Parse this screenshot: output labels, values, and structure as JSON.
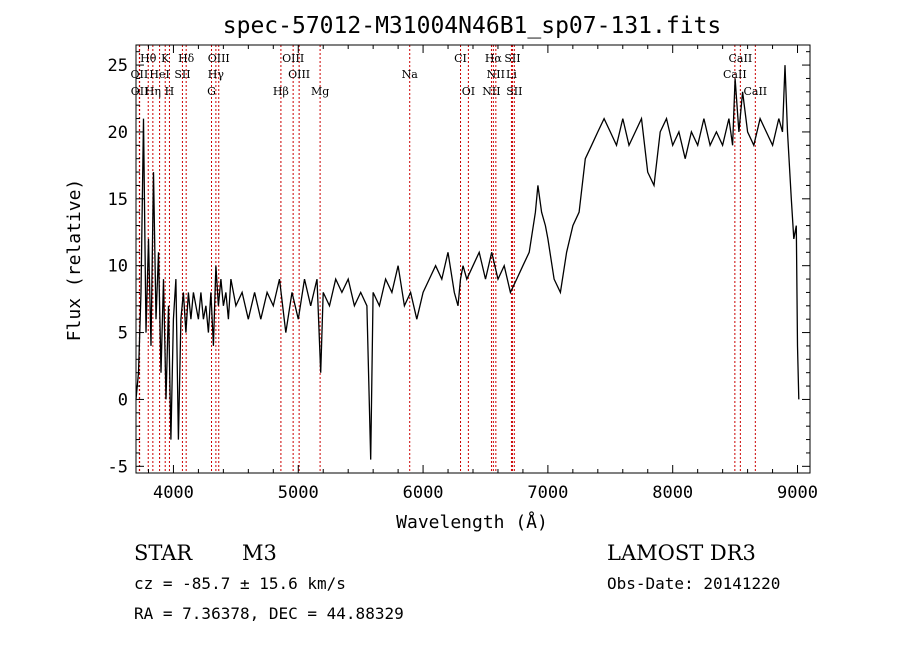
{
  "chart_data": {
    "type": "line",
    "title": "spec-57012-M31004N46B1_sp07-131.fits",
    "xlabel": "Wavelength (Å)",
    "ylabel": "Flux (relative)",
    "xlim": [
      3700,
      9100
    ],
    "ylim": [
      -5.5,
      26.5
    ],
    "x_ticks": [
      4000,
      5000,
      6000,
      7000,
      8000,
      9000
    ],
    "y_ticks": [
      -5,
      0,
      5,
      10,
      15,
      20,
      25
    ],
    "grid": false,
    "spectrum": [
      [
        3700,
        0
      ],
      [
        3720,
        2
      ],
      [
        3740,
        8
      ],
      [
        3760,
        21
      ],
      [
        3780,
        5
      ],
      [
        3800,
        12
      ],
      [
        3820,
        4
      ],
      [
        3840,
        17
      ],
      [
        3860,
        6
      ],
      [
        3880,
        11
      ],
      [
        3900,
        2
      ],
      [
        3920,
        9
      ],
      [
        3940,
        0
      ],
      [
        3960,
        7
      ],
      [
        3980,
        -3
      ],
      [
        4000,
        6
      ],
      [
        4020,
        9
      ],
      [
        4040,
        -3
      ],
      [
        4060,
        6
      ],
      [
        4080,
        8
      ],
      [
        4100,
        5
      ],
      [
        4120,
        8
      ],
      [
        4140,
        6
      ],
      [
        4160,
        8
      ],
      [
        4180,
        7
      ],
      [
        4200,
        6
      ],
      [
        4220,
        8
      ],
      [
        4240,
        6
      ],
      [
        4260,
        7
      ],
      [
        4280,
        5
      ],
      [
        4300,
        8
      ],
      [
        4320,
        4
      ],
      [
        4340,
        10
      ],
      [
        4360,
        7
      ],
      [
        4380,
        9
      ],
      [
        4400,
        7
      ],
      [
        4420,
        8
      ],
      [
        4440,
        6
      ],
      [
        4460,
        9
      ],
      [
        4480,
        8
      ],
      [
        4500,
        7
      ],
      [
        4550,
        8
      ],
      [
        4600,
        6
      ],
      [
        4650,
        8
      ],
      [
        4700,
        6
      ],
      [
        4750,
        8
      ],
      [
        4800,
        7
      ],
      [
        4850,
        9
      ],
      [
        4900,
        5
      ],
      [
        4950,
        8
      ],
      [
        5000,
        6
      ],
      [
        5050,
        9
      ],
      [
        5100,
        7
      ],
      [
        5150,
        9
      ],
      [
        5180,
        2
      ],
      [
        5200,
        8
      ],
      [
        5250,
        7
      ],
      [
        5300,
        9
      ],
      [
        5350,
        8
      ],
      [
        5400,
        9
      ],
      [
        5450,
        7
      ],
      [
        5500,
        8
      ],
      [
        5550,
        7
      ],
      [
        5580,
        -4.5
      ],
      [
        5600,
        8
      ],
      [
        5650,
        7
      ],
      [
        5700,
        9
      ],
      [
        5750,
        8
      ],
      [
        5800,
        10
      ],
      [
        5850,
        7
      ],
      [
        5900,
        8
      ],
      [
        5950,
        6
      ],
      [
        6000,
        8
      ],
      [
        6050,
        9
      ],
      [
        6100,
        10
      ],
      [
        6150,
        9
      ],
      [
        6200,
        11
      ],
      [
        6250,
        8
      ],
      [
        6280,
        7
      ],
      [
        6300,
        9
      ],
      [
        6320,
        10
      ],
      [
        6350,
        9
      ],
      [
        6400,
        10
      ],
      [
        6450,
        11
      ],
      [
        6500,
        9
      ],
      [
        6550,
        11
      ],
      [
        6600,
        9
      ],
      [
        6650,
        10
      ],
      [
        6700,
        8
      ],
      [
        6750,
        9
      ],
      [
        6800,
        10
      ],
      [
        6850,
        11
      ],
      [
        6900,
        14
      ],
      [
        6920,
        16
      ],
      [
        6950,
        14
      ],
      [
        6980,
        13
      ],
      [
        7000,
        12
      ],
      [
        7050,
        9
      ],
      [
        7100,
        8
      ],
      [
        7150,
        11
      ],
      [
        7200,
        13
      ],
      [
        7250,
        14
      ],
      [
        7300,
        18
      ],
      [
        7350,
        19
      ],
      [
        7400,
        20
      ],
      [
        7450,
        21
      ],
      [
        7500,
        20
      ],
      [
        7550,
        19
      ],
      [
        7600,
        21
      ],
      [
        7650,
        19
      ],
      [
        7700,
        20
      ],
      [
        7750,
        21
      ],
      [
        7800,
        17
      ],
      [
        7850,
        16
      ],
      [
        7900,
        20
      ],
      [
        7950,
        21
      ],
      [
        8000,
        19
      ],
      [
        8050,
        20
      ],
      [
        8100,
        18
      ],
      [
        8150,
        20
      ],
      [
        8200,
        19
      ],
      [
        8250,
        21
      ],
      [
        8300,
        19
      ],
      [
        8350,
        20
      ],
      [
        8400,
        19
      ],
      [
        8450,
        21
      ],
      [
        8480,
        19
      ],
      [
        8500,
        24
      ],
      [
        8530,
        20
      ],
      [
        8560,
        23
      ],
      [
        8600,
        20
      ],
      [
        8650,
        19
      ],
      [
        8700,
        21
      ],
      [
        8750,
        20
      ],
      [
        8800,
        19
      ],
      [
        8850,
        21
      ],
      [
        8880,
        20
      ],
      [
        8900,
        25
      ],
      [
        8920,
        20
      ],
      [
        8950,
        15
      ],
      [
        8970,
        12
      ],
      [
        8990,
        13
      ],
      [
        9000,
        4
      ],
      [
        9010,
        0
      ]
    ],
    "line_markers": [
      {
        "name": "Hθ",
        "wavelength": 3798,
        "row": 1
      },
      {
        "name": "K",
        "wavelength": 3934,
        "row": 1
      },
      {
        "name": "Hδ",
        "wavelength": 4102,
        "row": 1
      },
      {
        "name": "OIII",
        "wavelength": 4363,
        "row": 1
      },
      {
        "name": "OIII",
        "wavelength": 4959,
        "row": 1
      },
      {
        "name": "CI",
        "wavelength": 6300,
        "row": 1
      },
      {
        "name": "Hα",
        "wavelength": 6563,
        "row": 1
      },
      {
        "name": "SII",
        "wavelength": 6716,
        "row": 1
      },
      {
        "name": "CaII",
        "wavelength": 8542,
        "row": 1
      },
      {
        "name": "OII",
        "wavelength": 3727,
        "row": 2
      },
      {
        "name": "HeI",
        "wavelength": 3889,
        "row": 2
      },
      {
        "name": "SII",
        "wavelength": 4072,
        "row": 2
      },
      {
        "name": "Hγ",
        "wavelength": 4340,
        "row": 2
      },
      {
        "name": "OIII",
        "wavelength": 5007,
        "row": 2
      },
      {
        "name": "Na",
        "wavelength": 5893,
        "row": 2
      },
      {
        "name": "NII",
        "wavelength": 6583,
        "row": 2
      },
      {
        "name": "Li",
        "wavelength": 6708,
        "row": 2
      },
      {
        "name": "CaII",
        "wavelength": 8498,
        "row": 2
      },
      {
        "name": "OII",
        "wavelength": 3729,
        "row": 3
      },
      {
        "name": "Hη",
        "wavelength": 3835,
        "row": 3
      },
      {
        "name": "H",
        "wavelength": 3968,
        "row": 3
      },
      {
        "name": "G",
        "wavelength": 4305,
        "row": 3
      },
      {
        "name": "Hβ",
        "wavelength": 4861,
        "row": 3
      },
      {
        "name": "Mg",
        "wavelength": 5175,
        "row": 3
      },
      {
        "name": "OI",
        "wavelength": 6363,
        "row": 3
      },
      {
        "name": "NII",
        "wavelength": 6548,
        "row": 3
      },
      {
        "name": "SII",
        "wavelength": 6731,
        "row": 3
      },
      {
        "name": "CaII",
        "wavelength": 8662,
        "row": 3
      }
    ]
  },
  "info": {
    "class": "STAR",
    "subclass": "M3",
    "survey": "LAMOST DR3",
    "cz": "cz = -85.7 ± 15.6 km/s",
    "obs_date": "Obs-Date: 20141220",
    "radec": "RA =   7.36378, DEC =  44.88329"
  },
  "colors": {
    "marker": "#cc0000",
    "line": "#000000"
  }
}
